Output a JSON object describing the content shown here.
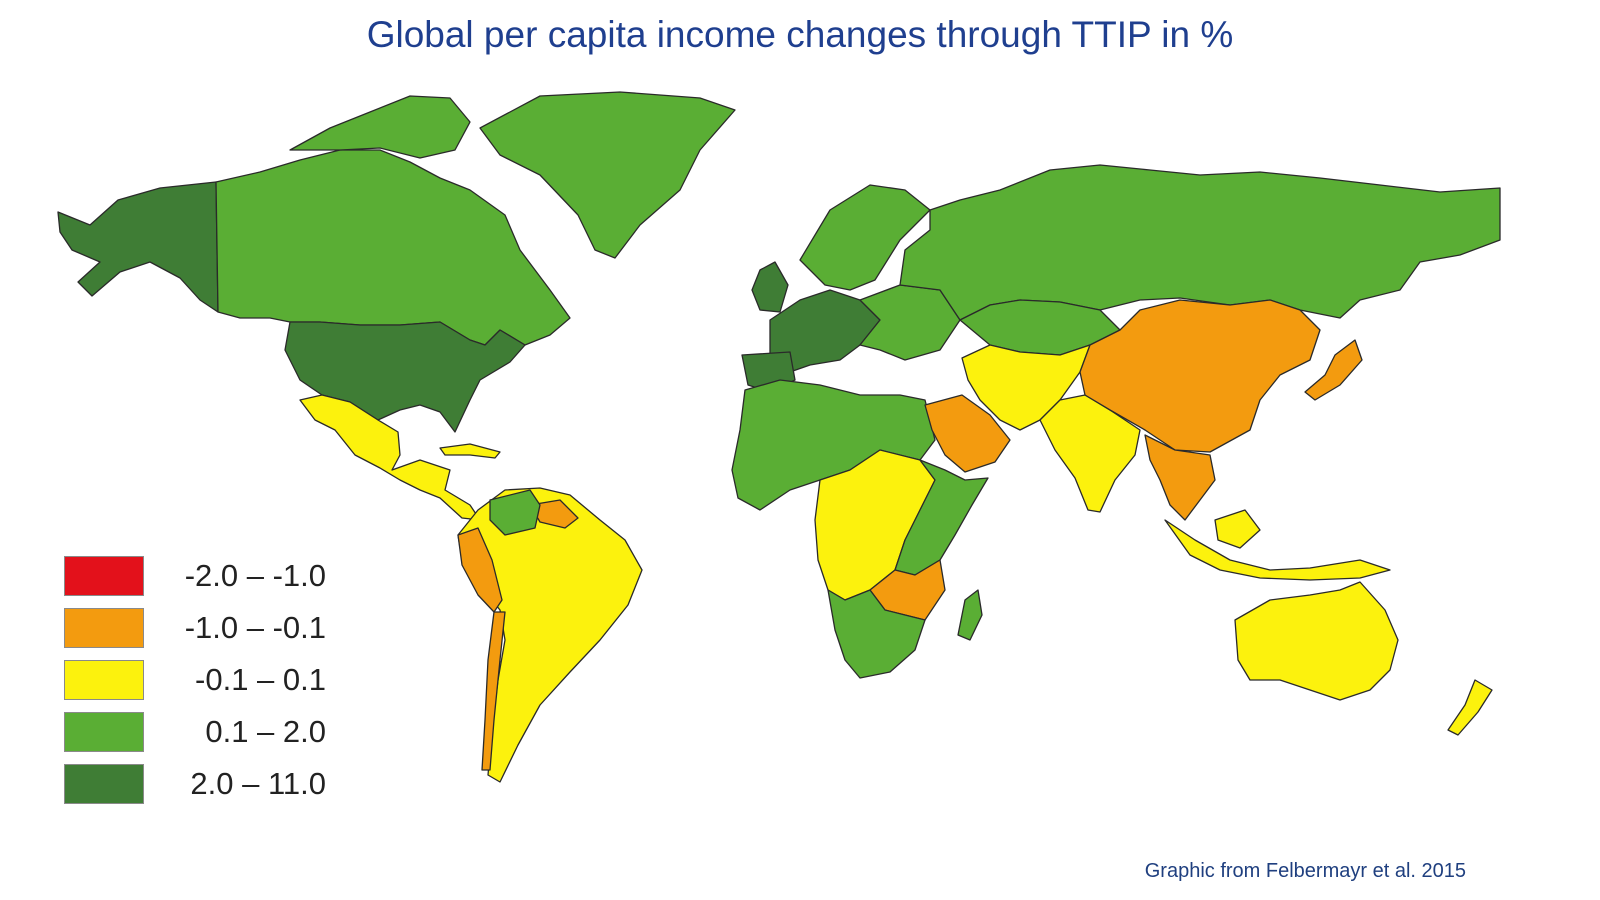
{
  "title": "Global per capita income changes through TTIP in %",
  "source": "Graphic from Felbermayr et al. 2015",
  "colors": {
    "red": "#e3111b",
    "orange": "#f39b0f",
    "yellow": "#fcf20d",
    "lightgreen": "#5aae34",
    "darkgreen": "#3f7d35",
    "title": "#1f3f8f"
  },
  "legend": [
    {
      "label": "-2.0 – -1.0",
      "color": "#e3111b"
    },
    {
      "label": "-1.0 – -0.1",
      "color": "#f39b0f"
    },
    {
      "label": "-0.1 – 0.1",
      "color": "#fcf20d"
    },
    {
      "label": "0.1 – 2.0",
      "color": "#5aae34"
    },
    {
      "label": "2.0 – 11.0",
      "color": "#3f7d35"
    }
  ],
  "regions": [
    {
      "name": "Alaska",
      "category": "2.0 – 11.0"
    },
    {
      "name": "Canada",
      "category": "0.1 – 2.0"
    },
    {
      "name": "Greenland",
      "category": "0.1 – 2.0"
    },
    {
      "name": "United States",
      "category": "2.0 – 11.0"
    },
    {
      "name": "Mexico and Central America",
      "category": "-0.1 – 0.1"
    },
    {
      "name": "South America",
      "category": "-0.1 – 0.1"
    },
    {
      "name": "Peru",
      "category": "-1.0 – -0.1"
    },
    {
      "name": "Chile",
      "category": "-1.0 – -0.1"
    },
    {
      "name": "Guianas",
      "category": "-1.0 – -0.1"
    },
    {
      "name": "Western Europe",
      "category": "2.0 – 11.0"
    },
    {
      "name": "Scandinavia",
      "category": "0.1 – 2.0"
    },
    {
      "name": "Russia",
      "category": "0.1 – 2.0"
    },
    {
      "name": "Central Asia",
      "category": "0.1 – 2.0"
    },
    {
      "name": "North Africa",
      "category": "0.1 – 2.0"
    },
    {
      "name": "Saudi Arabia",
      "category": "-1.0 – -0.1"
    },
    {
      "name": "Middle East",
      "category": "-0.1 – 0.1"
    },
    {
      "name": "India",
      "category": "-0.1 – 0.1"
    },
    {
      "name": "China and Mongolia",
      "category": "-1.0 – -0.1"
    },
    {
      "name": "Japan",
      "category": "-1.0 – -0.1"
    },
    {
      "name": "Southeast Asia",
      "category": "-1.0 – -0.1"
    },
    {
      "name": "Indonesia",
      "category": "-0.1 – 0.1"
    },
    {
      "name": "Central Africa",
      "category": "-0.1 – 0.1"
    },
    {
      "name": "East Africa",
      "category": "0.1 – 2.0"
    },
    {
      "name": "Southern Africa",
      "category": "0.1 – 2.0"
    },
    {
      "name": "Mozambique region",
      "category": "-1.0 – -0.1"
    },
    {
      "name": "Madagascar",
      "category": "0.1 – 2.0"
    },
    {
      "name": "Australia",
      "category": "-0.1 – 0.1"
    },
    {
      "name": "New Zealand",
      "category": "-0.1 – 0.1"
    }
  ]
}
